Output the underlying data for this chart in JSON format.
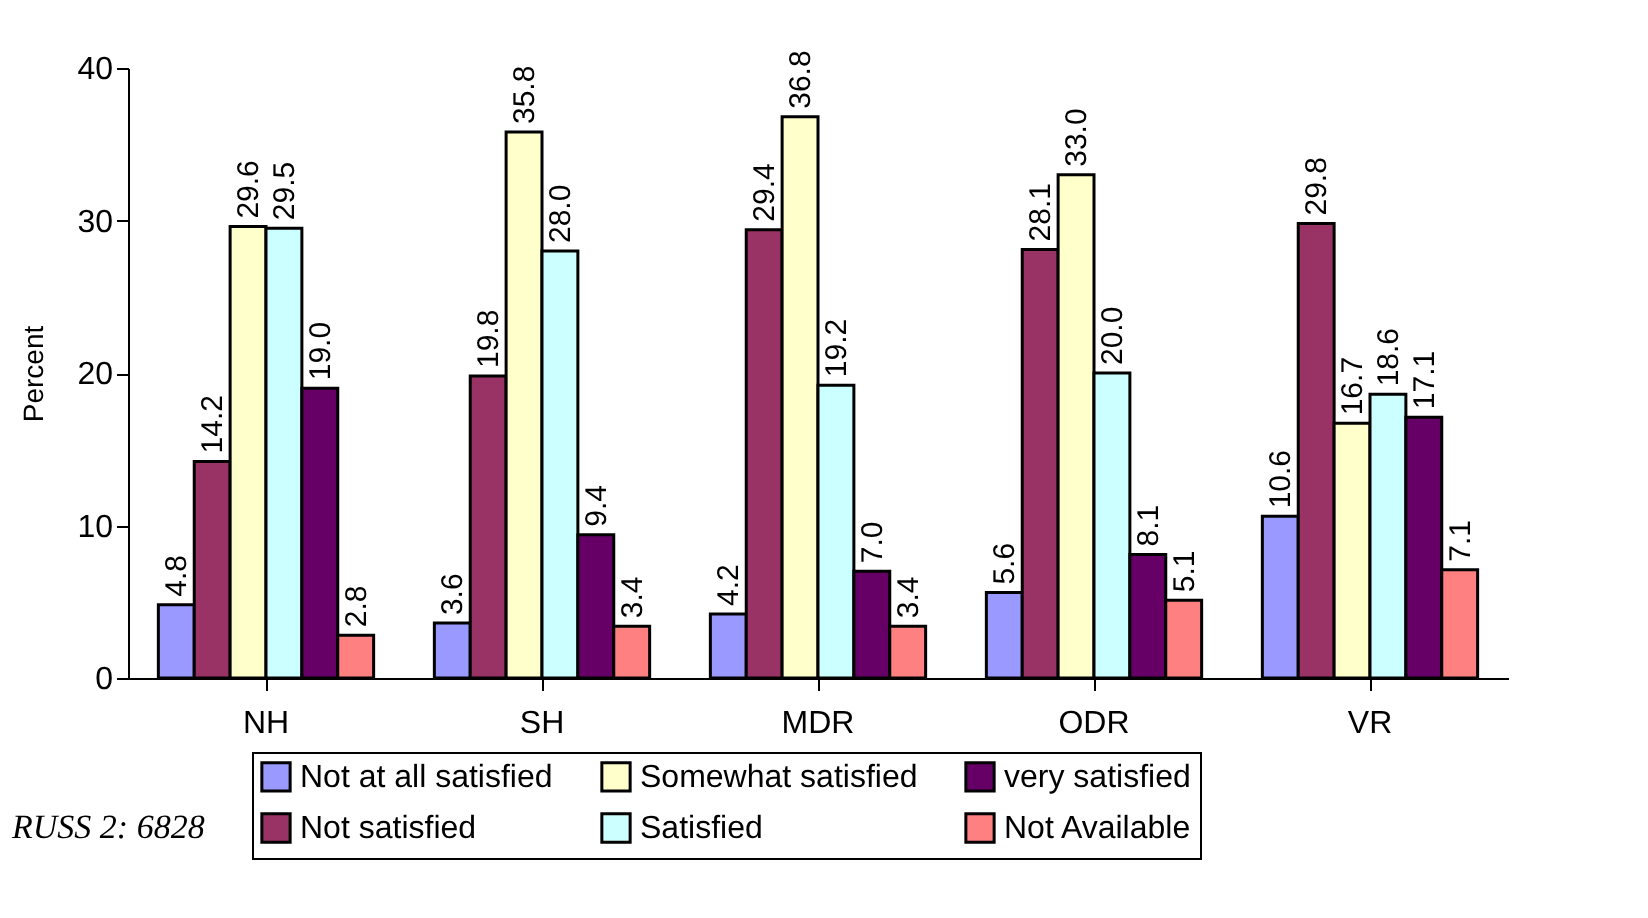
{
  "chart_data": {
    "type": "bar",
    "ylabel": "Percent",
    "categories": [
      "NH",
      "SH",
      "MDR",
      "ODR",
      "VR"
    ],
    "series": [
      {
        "name": "Not at all satisfied",
        "color": "#9999ff",
        "values": [
          4.8,
          3.6,
          4.2,
          5.6,
          10.6
        ],
        "value_labels": [
          "4.8",
          "3.6",
          "4.2",
          "5.6",
          "10.6"
        ]
      },
      {
        "name": "Not satisfied",
        "color": "#993366",
        "values": [
          14.2,
          19.8,
          29.4,
          28.1,
          29.8
        ],
        "value_labels": [
          "14.2",
          "19.8",
          "29.4",
          "28.1",
          "29.8"
        ]
      },
      {
        "name": "Somewhat satisfied",
        "color": "#ffffcc",
        "values": [
          29.6,
          35.8,
          36.8,
          33,
          16.7
        ],
        "value_labels": [
          "29.6",
          "35.8",
          "36.8",
          "33.0",
          "16.7"
        ]
      },
      {
        "name": "Satisfied",
        "color": "#ccffff",
        "values": [
          29.5,
          28,
          19.2,
          20,
          18.6
        ],
        "value_labels": [
          "29.5",
          "28.0",
          "19.2",
          "20.0",
          "18.6"
        ]
      },
      {
        "name": "very satisfied",
        "color": "#660066",
        "values": [
          19,
          9.4,
          7,
          8.1,
          17.1
        ],
        "value_labels": [
          "19.0",
          "9.4",
          "7.0",
          "8.1",
          "17.1"
        ]
      },
      {
        "name": "Not Available",
        "color": "#ff8080",
        "values": [
          2.8,
          3.4,
          3.4,
          5.1,
          7.1
        ],
        "value_labels": [
          "2.8",
          "3.4",
          "3.4",
          "5.1",
          "7.1"
        ]
      }
    ],
    "ylim": [
      0,
      40
    ],
    "yticks": [
      0,
      10,
      20,
      30,
      40
    ],
    "grid": false,
    "legend": "bottom",
    "annotations": [
      "RUSS 2: 6828"
    ]
  }
}
